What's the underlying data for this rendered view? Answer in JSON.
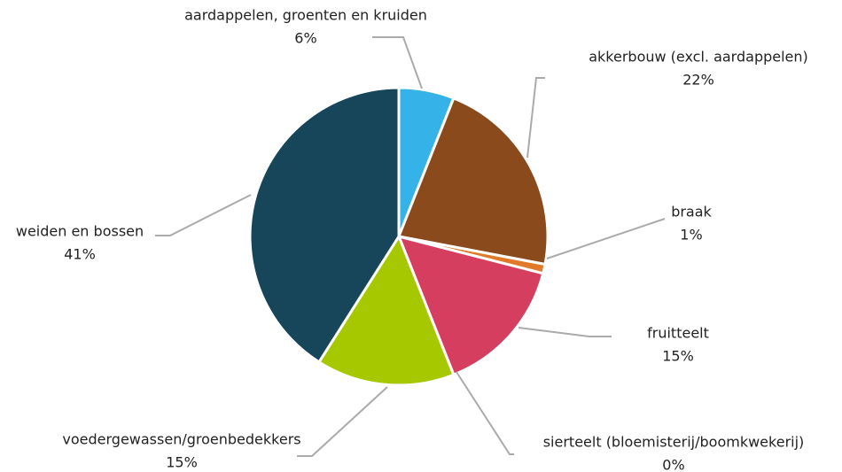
{
  "chart_data": {
    "type": "pie",
    "categories": [
      "aardappelen, groenten en kruiden",
      "akkerbouw (excl. aardappelen)",
      "braak",
      "fruitteelt",
      "sierteelt (bloemisterij/boomkwekerij)",
      "voedergewassen/groenbedekkers",
      "weiden en bossen"
    ],
    "values": [
      6,
      22,
      1,
      15,
      0,
      15,
      41
    ],
    "value_labels": [
      "6%",
      "22%",
      "1%",
      "15%",
      "0%",
      "15%",
      "41%"
    ],
    "colors": [
      "#35b3e8",
      "#8b4a1c",
      "#e07a2a",
      "#d63e60",
      "#c9c9c9",
      "#a5c800",
      "#17455a"
    ]
  }
}
